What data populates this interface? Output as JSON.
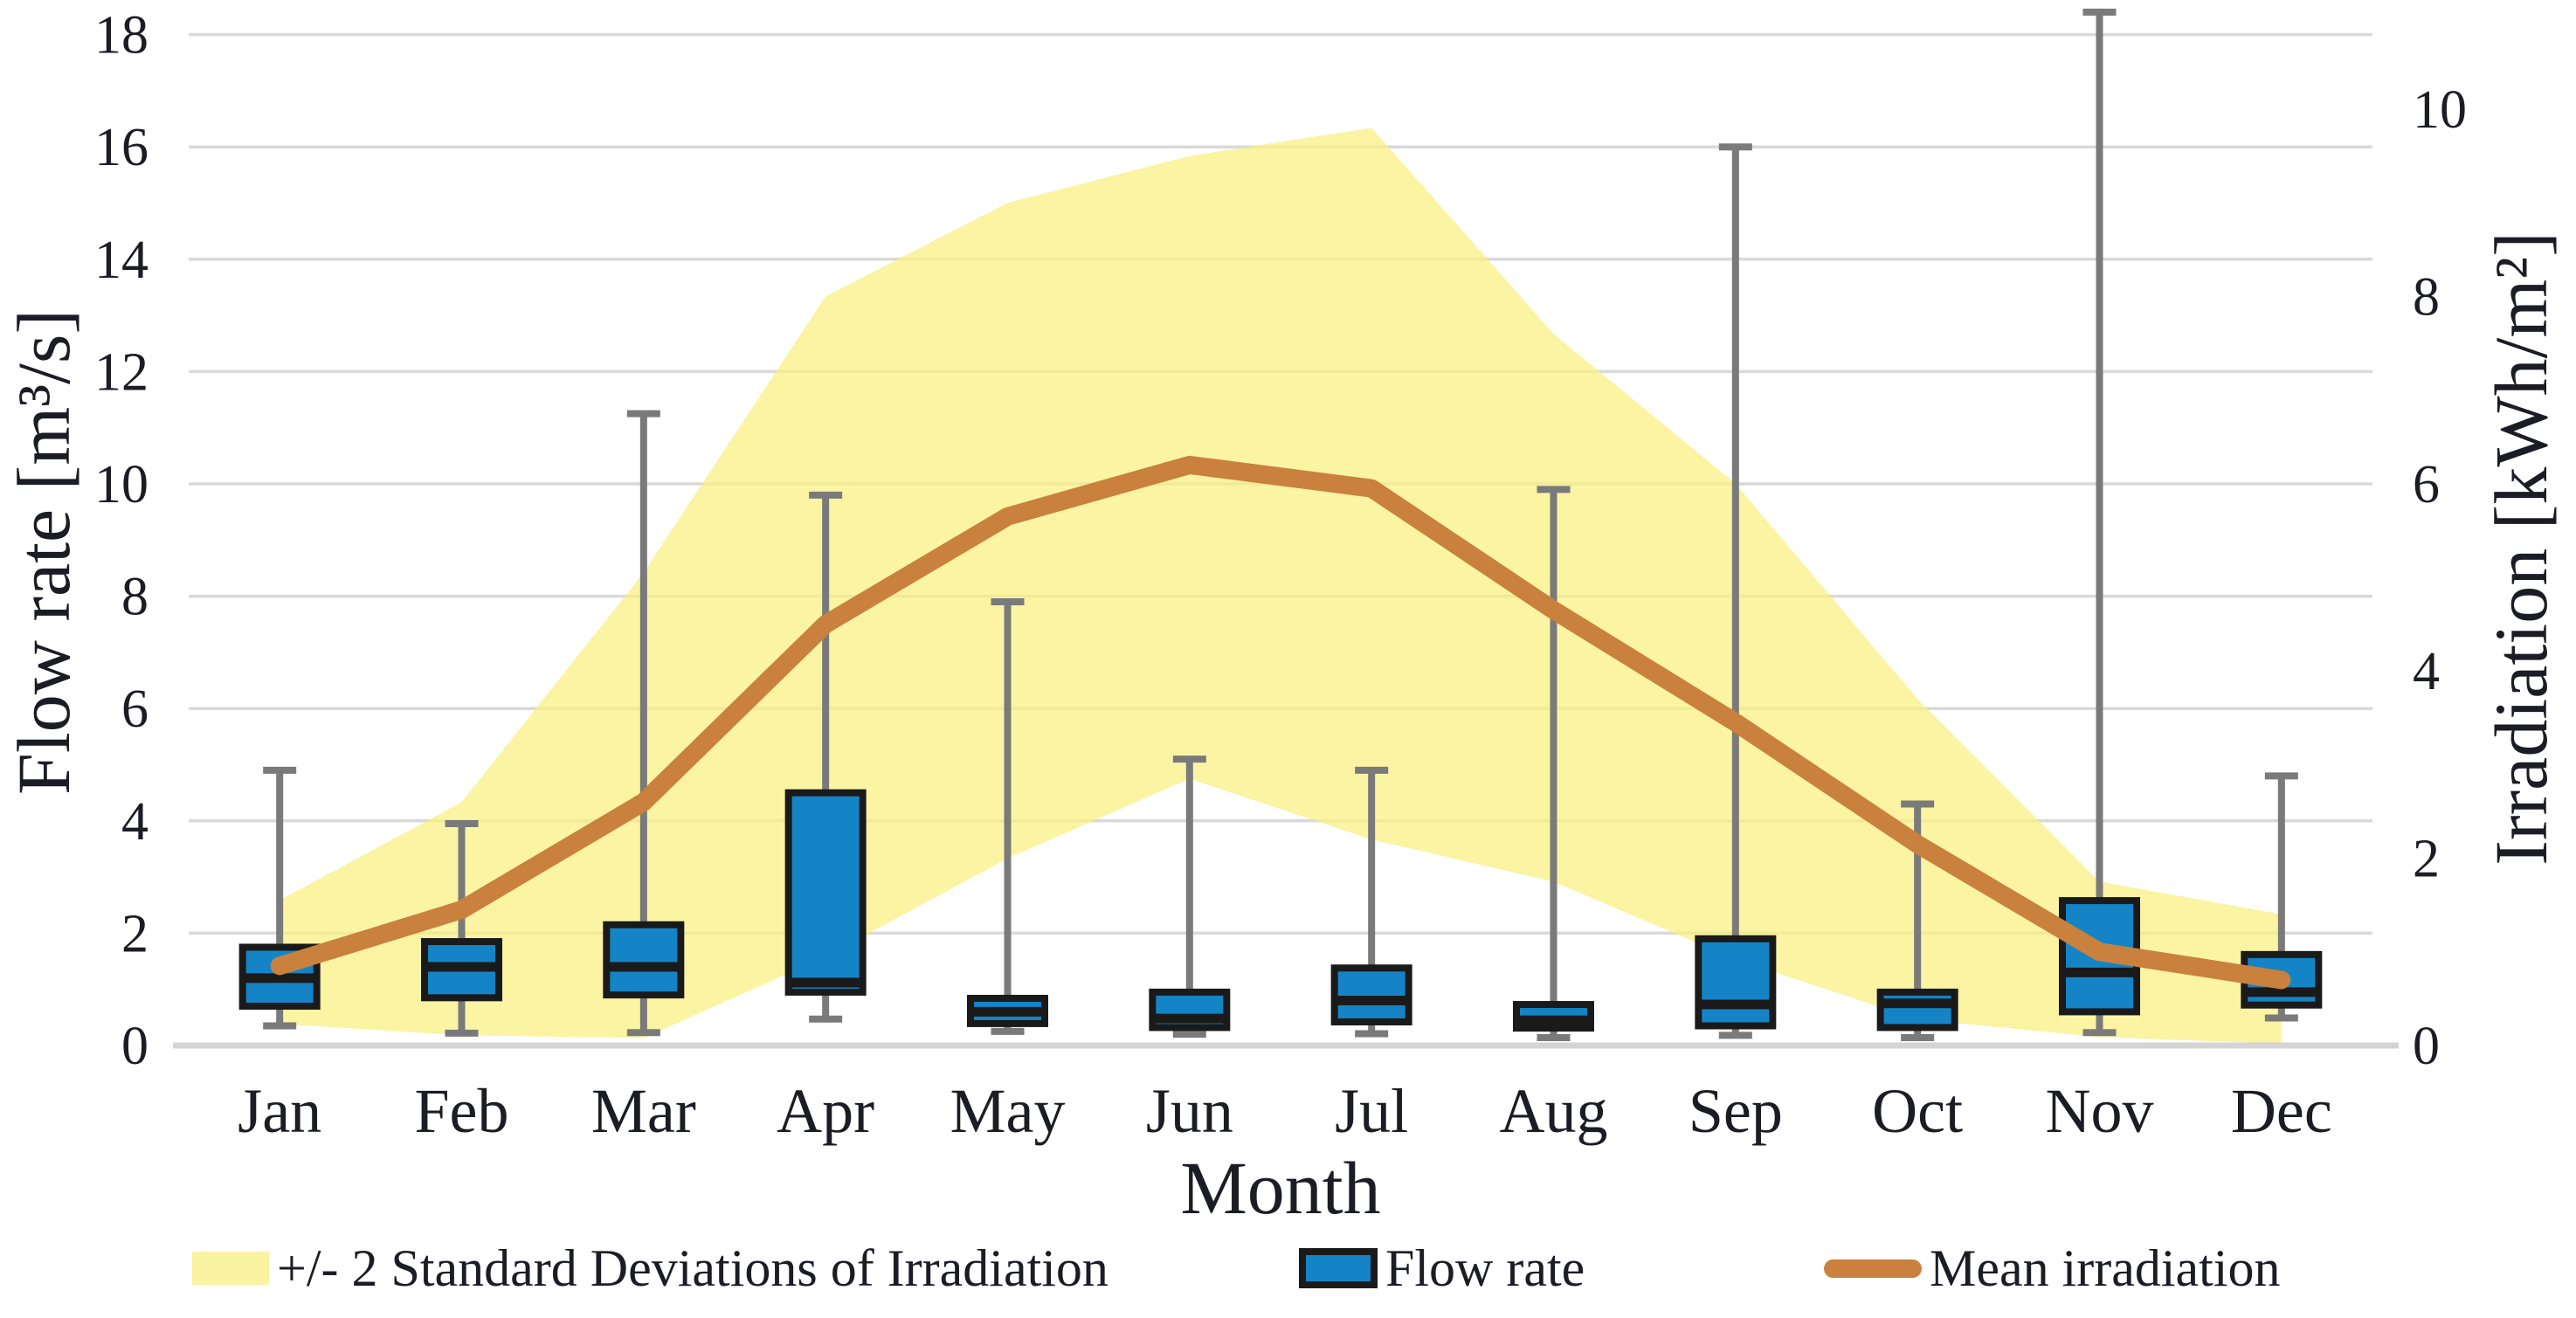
{
  "chart_data": {
    "type": "box-whisker + line + area-band (dual axis)",
    "categories": [
      "Jan",
      "Feb",
      "Mar",
      "Apr",
      "May",
      "Jun",
      "Jul",
      "Aug",
      "Sep",
      "Oct",
      "Nov",
      "Dec"
    ],
    "x_axis": {
      "title": "Month"
    },
    "y_axis_left": {
      "title": "Flow rate [m³/s]",
      "range": [
        0,
        18
      ],
      "tick_step": 2,
      "ticks": [
        0,
        2,
        4,
        6,
        8,
        10,
        12,
        14,
        16,
        18
      ]
    },
    "y_axis_right": {
      "title": "Irradiation [kWh/m²]",
      "range": [
        0,
        10
      ],
      "tick_step": 2,
      "ticks": [
        0,
        2,
        4,
        6,
        8,
        10
      ]
    },
    "grid": "horizontal-on",
    "legend_position": "bottom",
    "series": [
      {
        "name": "+/- 2 Standard Deviations of Irradiation",
        "type": "band",
        "axis": "right",
        "unit": "kWh/m²",
        "upper": [
          1.55,
          2.6,
          5.05,
          8.0,
          9.0,
          9.5,
          9.8,
          7.6,
          6.0,
          3.7,
          1.75,
          1.4
        ],
        "lower": [
          0.23,
          0.11,
          0.08,
          0.95,
          2.0,
          2.85,
          2.2,
          1.75,
          0.92,
          0.28,
          0.09,
          0.02
        ]
      },
      {
        "name": "Flow rate",
        "type": "box",
        "axis": "left",
        "unit": "m³/s",
        "boxes": [
          {
            "month": "Jan",
            "whisker_low": 0.35,
            "q1": 0.7,
            "median": 1.2,
            "q3": 1.75,
            "whisker_high": 4.9
          },
          {
            "month": "Feb",
            "whisker_low": 0.22,
            "q1": 0.85,
            "median": 1.4,
            "q3": 1.85,
            "whisker_high": 3.95
          },
          {
            "month": "Mar",
            "whisker_low": 0.23,
            "q1": 0.9,
            "median": 1.4,
            "q3": 2.15,
            "whisker_high": 11.25
          },
          {
            "month": "Apr",
            "whisker_low": 0.47,
            "q1": 0.95,
            "median": 1.12,
            "q3": 4.5,
            "whisker_high": 9.8
          },
          {
            "month": "May",
            "whisker_low": 0.25,
            "q1": 0.39,
            "median": 0.6,
            "q3": 0.84,
            "whisker_high": 7.9
          },
          {
            "month": "Jun",
            "whisker_low": 0.2,
            "q1": 0.32,
            "median": 0.48,
            "q3": 0.95,
            "whisker_high": 5.1
          },
          {
            "month": "Jul",
            "whisker_low": 0.21,
            "q1": 0.42,
            "median": 0.8,
            "q3": 1.38,
            "whisker_high": 4.9
          },
          {
            "month": "Aug",
            "whisker_low": 0.14,
            "q1": 0.31,
            "median": 0.45,
            "q3": 0.73,
            "whisker_high": 9.9
          },
          {
            "month": "Sep",
            "whisker_low": 0.18,
            "q1": 0.35,
            "median": 0.73,
            "q3": 1.9,
            "whisker_high": 16.0
          },
          {
            "month": "Oct",
            "whisker_low": 0.14,
            "q1": 0.32,
            "median": 0.75,
            "q3": 0.95,
            "whisker_high": 4.3
          },
          {
            "month": "Nov",
            "whisker_low": 0.23,
            "q1": 0.6,
            "median": 1.3,
            "q3": 2.58,
            "whisker_high": 18.4
          },
          {
            "month": "Dec",
            "whisker_low": 0.49,
            "q1": 0.72,
            "median": 0.95,
            "q3": 1.62,
            "whisker_high": 4.8
          }
        ]
      },
      {
        "name": "Mean irradiation",
        "type": "line",
        "axis": "right",
        "unit": "kWh/m²",
        "values": [
          0.85,
          1.45,
          2.6,
          4.5,
          5.65,
          6.2,
          5.95,
          4.65,
          3.45,
          2.15,
          1.0,
          0.7
        ]
      }
    ]
  },
  "colors": {
    "background": "#FFFFFF",
    "band_fill": "#F8F07F",
    "band_opacity": 0.72,
    "band_legend": "#FAF3A1",
    "box_fill": "#1484C6",
    "box_border": "#1A1A1A",
    "whisker": "#7A7A7A",
    "mean_line": "#C9813D",
    "gridline": "#D9D9D9",
    "axis_line": "#D4D4D4",
    "text": "#1C1C24"
  }
}
